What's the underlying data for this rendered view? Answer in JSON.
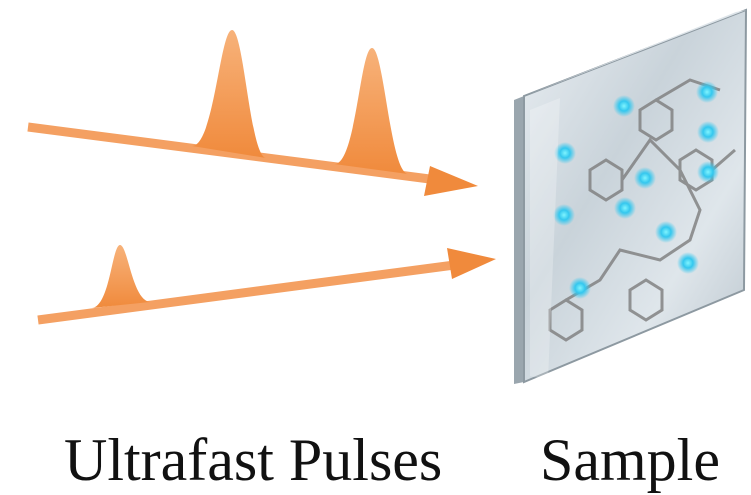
{
  "labels": [
    "Ultrafast Pulses",
    "Sample"
  ]
}
